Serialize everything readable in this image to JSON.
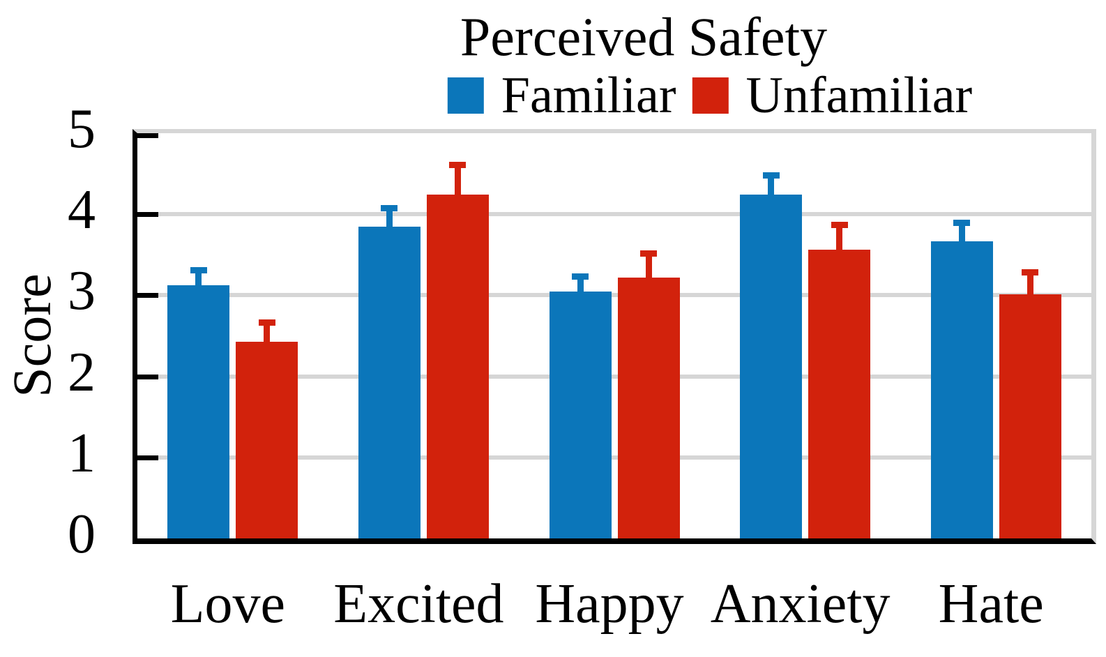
{
  "figure": {
    "title": "Perceived Safety",
    "y_axis_label": "Score",
    "legend": [
      {
        "label": "Familiar",
        "color": "#0B76BA"
      },
      {
        "label": "Unfamiliar",
        "color": "#D2220C"
      }
    ]
  },
  "chart_data": {
    "type": "bar",
    "title": "Perceived Safety",
    "xlabel": "",
    "ylabel": "Score",
    "categories": [
      "Love",
      "Excited",
      "Happy",
      "Anxiety",
      "Hate"
    ],
    "series": [
      {
        "name": "Familiar",
        "color": "#0B76BA",
        "values": [
          3.12,
          3.85,
          3.05,
          4.24,
          3.67
        ],
        "errors": [
          0.17,
          0.2,
          0.16,
          0.22,
          0.2
        ]
      },
      {
        "name": "Unfamiliar",
        "color": "#D2220C",
        "values": [
          2.43,
          4.24,
          3.22,
          3.56,
          3.01
        ],
        "errors": [
          0.21,
          0.35,
          0.27,
          0.29,
          0.25
        ]
      }
    ],
    "ylim": [
      0,
      5
    ],
    "yticks": [
      0,
      1,
      2,
      3,
      4,
      5
    ],
    "grid": true,
    "error_bars": true,
    "legend_position": "top"
  },
  "colors": {
    "gridline": "#D6D6D6",
    "axis": "#000000",
    "background": "#FFFFFF"
  }
}
